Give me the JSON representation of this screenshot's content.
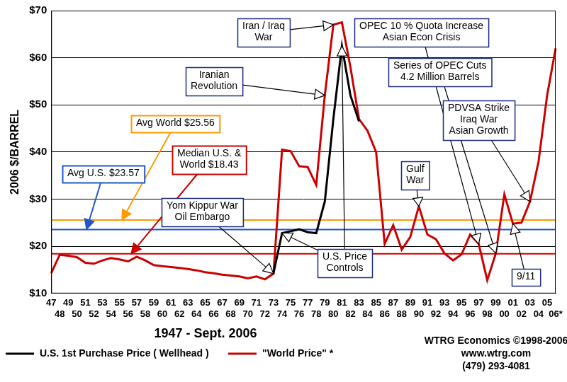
{
  "chart_data": {
    "type": "line",
    "x_label": "1947 - Sept. 2006",
    "y_label": "2006 $/BARREL",
    "categories": [
      "47",
      "48",
      "49",
      "50",
      "51",
      "52",
      "53",
      "54",
      "55",
      "56",
      "57",
      "58",
      "59",
      "60",
      "61",
      "62",
      "63",
      "64",
      "65",
      "66",
      "67",
      "68",
      "69",
      "70",
      "71",
      "72",
      "73",
      "74",
      "75",
      "76",
      "77",
      "78",
      "79",
      "80",
      "81",
      "82",
      "83",
      "84",
      "85",
      "86",
      "87",
      "88",
      "89",
      "90",
      "91",
      "92",
      "93",
      "94",
      "95",
      "96",
      "97",
      "98",
      "99",
      "00",
      "01",
      "02",
      "03",
      "04",
      "05",
      "06*"
    ],
    "series": [
      {
        "name": "U.S. 1st Purchase Price ( Wellhead )",
        "color": "#000000",
        "values": [
          null,
          null,
          null,
          null,
          null,
          null,
          null,
          null,
          null,
          null,
          null,
          null,
          null,
          null,
          null,
          null,
          null,
          null,
          null,
          null,
          null,
          null,
          null,
          null,
          null,
          null,
          14.3,
          22.8,
          23.2,
          23.6,
          23.0,
          22.8,
          29.5,
          47.0,
          62.5,
          52.0,
          46.5,
          null,
          null,
          null,
          null,
          null,
          null,
          null,
          null,
          null,
          null,
          null,
          null,
          null,
          null,
          null,
          null,
          null,
          null,
          null,
          null,
          null,
          null,
          null
        ]
      },
      {
        "name": "\"World Price\" *",
        "color": "#cc0000",
        "values": [
          14.3,
          18.2,
          18.0,
          17.7,
          16.5,
          16.3,
          17.0,
          17.5,
          17.2,
          16.8,
          17.8,
          17.0,
          16.0,
          15.8,
          15.6,
          15.4,
          15.2,
          14.9,
          14.5,
          14.3,
          14.0,
          13.8,
          13.6,
          13.2,
          13.6,
          13.0,
          14.2,
          40.5,
          40.2,
          37.0,
          36.8,
          33.0,
          52.0,
          67.0,
          67.5,
          58.0,
          47.0,
          44.5,
          40.0,
          20.5,
          24.5,
          19.3,
          22.0,
          28.5,
          22.5,
          21.5,
          18.5,
          17.0,
          18.3,
          22.5,
          20.5,
          12.8,
          18.5,
          31.0,
          24.8,
          25.0,
          29.5,
          38.0,
          52.0,
          62.0
        ]
      }
    ],
    "ylim": [
      10,
      70
    ],
    "yticks": [
      {
        "value": 10,
        "label": "$10"
      },
      {
        "value": 20,
        "label": "$20"
      },
      {
        "value": 30,
        "label": "$30"
      },
      {
        "value": 40,
        "label": "$40"
      },
      {
        "value": 50,
        "label": "$50"
      },
      {
        "value": 60,
        "label": "$60"
      },
      {
        "value": 70,
        "label": "$70"
      }
    ],
    "grid": true,
    "legend": "bottom",
    "reference_lines": [
      {
        "label": "Avg World $25.56",
        "value": 25.56,
        "color": "#ff9900"
      },
      {
        "label": "Avg U.S. $23.57",
        "value": 23.57,
        "color": "#2255cc"
      },
      {
        "label": "Median U.S. & World $18.43",
        "value": 18.43,
        "color": "#cc0000"
      }
    ],
    "annotations": [
      {
        "lines": [
          "Iran / Iraq",
          "War"
        ],
        "x": [
          "80"
        ]
      },
      {
        "lines": [
          "Iranian",
          "Revolution"
        ],
        "x": [
          "79"
        ]
      },
      {
        "lines": [
          "OPEC 10 % Quota Increase",
          "Asian Econ Crisis"
        ],
        "x": [
          "97"
        ]
      },
      {
        "lines": [
          "Series of OPEC Cuts",
          "4.2 Million Barrels"
        ],
        "x": [
          "99"
        ]
      },
      {
        "lines": [
          "PDVSA Strike",
          "Iraq War",
          "Asian Growth"
        ],
        "x": [
          "03"
        ]
      },
      {
        "lines": [
          "Gulf",
          "War"
        ],
        "x": [
          "90"
        ]
      },
      {
        "lines": [
          "Yom Kippur War",
          "Oil Embargo"
        ],
        "x": [
          "73"
        ]
      },
      {
        "lines": [
          "U.S. Price",
          "Controls"
        ],
        "x": [
          "74",
          "81"
        ]
      },
      {
        "lines": [
          "9/11"
        ],
        "x": [
          "01"
        ]
      }
    ],
    "credits": [
      "WTRG Economics ©1998-2006",
      "www.wtrg.com",
      "(479) 293-4081"
    ]
  }
}
